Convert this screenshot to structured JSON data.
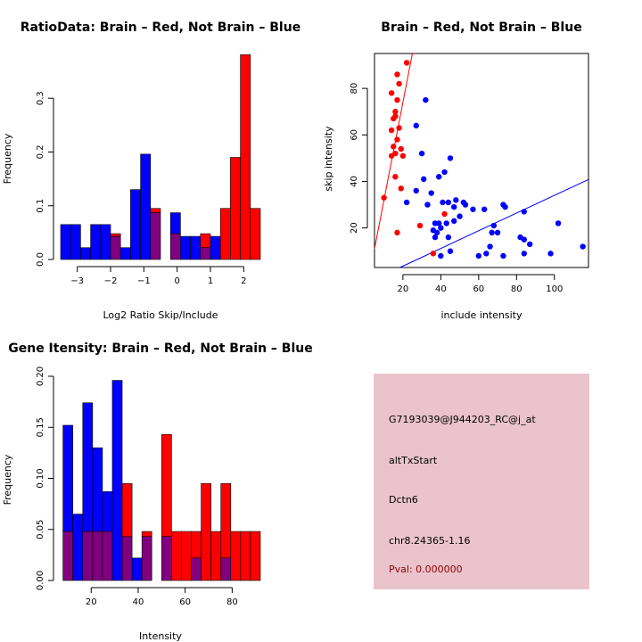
{
  "colors": {
    "brain": "#ff0000",
    "not_brain": "#0000ff",
    "overlap": "#800080",
    "info_bg": "#eac3cc",
    "pval": "#8b0000"
  },
  "chart_data": [
    {
      "id": "ratio",
      "type": "bar",
      "title": "RatioData: Brain – Red, Not Brain – Blue",
      "xlabel": "Log2 Ratio Skip/Include",
      "ylabel": "Frequency",
      "xlim": [
        -3.5,
        2.5
      ],
      "ylim": [
        0,
        0.38
      ],
      "xticks": [
        -3,
        -2,
        -1,
        0,
        1,
        2
      ],
      "xticklabels": [
        "−3",
        "−2",
        "−1",
        "0",
        "1",
        "2"
      ],
      "yticks": [
        0,
        0.1,
        0.2,
        0.3
      ],
      "yticklabels": [
        "0.0",
        "0.1",
        "0.2",
        "0.3"
      ],
      "bin_start": -3.5,
      "bin_width": 0.3,
      "series": [
        {
          "name": "Not Brain",
          "values": [
            0.065,
            0.065,
            0.022,
            0.065,
            0.065,
            0.043,
            0.022,
            0.13,
            0.196,
            0.087,
            0,
            0.087,
            0.043,
            0.043,
            0.022,
            0.043,
            0,
            0,
            0,
            0
          ]
        },
        {
          "name": "Brain",
          "values": [
            0,
            0,
            0,
            0,
            0,
            0.048,
            0,
            0,
            0,
            0.095,
            0,
            0.048,
            0,
            0,
            0.048,
            0,
            0.095,
            0.19,
            0.381,
            0.095
          ]
        }
      ]
    },
    {
      "id": "scatter",
      "type": "scatter",
      "title": "Brain – Red, Not Brain – Blue",
      "xlabel": "include intensity",
      "ylabel": "skip intensity",
      "xlim": [
        5,
        118
      ],
      "ylim": [
        3,
        95
      ],
      "xticks": [
        20,
        40,
        60,
        80,
        100
      ],
      "xticklabels": [
        "20",
        "40",
        "60",
        "80",
        "100"
      ],
      "yticks": [
        20,
        40,
        60,
        80
      ],
      "yticklabels": [
        "20",
        "40",
        "60",
        "80"
      ],
      "red_line": {
        "intercept": -10,
        "slope": 4.2
      },
      "blue_line": {
        "intercept": -4,
        "slope": 0.38
      },
      "series": [
        {
          "name": "Brain",
          "points": [
            [
              22,
              91
            ],
            [
              17,
              86
            ],
            [
              18,
              82
            ],
            [
              14,
              78
            ],
            [
              17,
              75
            ],
            [
              16,
              70
            ],
            [
              16,
              68
            ],
            [
              15,
              67
            ],
            [
              18,
              63
            ],
            [
              14,
              62
            ],
            [
              17,
              58
            ],
            [
              15,
              55
            ],
            [
              19,
              54
            ],
            [
              16,
              52
            ],
            [
              14,
              51
            ],
            [
              20,
              51
            ],
            [
              16,
              42
            ],
            [
              19,
              37
            ],
            [
              10,
              33
            ],
            [
              17,
              18
            ],
            [
              29,
              21
            ],
            [
              42,
              26
            ],
            [
              36,
              9
            ]
          ]
        },
        {
          "name": "Not Brain",
          "points": [
            [
              32,
              75
            ],
            [
              27,
              64
            ],
            [
              30,
              52
            ],
            [
              45,
              50
            ],
            [
              39,
              42
            ],
            [
              42,
              44
            ],
            [
              31,
              41
            ],
            [
              35,
              35
            ],
            [
              27,
              36
            ],
            [
              33,
              30
            ],
            [
              22,
              31
            ],
            [
              41,
              31
            ],
            [
              44,
              31
            ],
            [
              47,
              29
            ],
            [
              48,
              32
            ],
            [
              53,
              30
            ],
            [
              52,
              31
            ],
            [
              57,
              28
            ],
            [
              63,
              28
            ],
            [
              74,
              29
            ],
            [
              73,
              30
            ],
            [
              84,
              27
            ],
            [
              50,
              25
            ],
            [
              39,
              22
            ],
            [
              43,
              22
            ],
            [
              37,
              22
            ],
            [
              40,
              20
            ],
            [
              36,
              19
            ],
            [
              38,
              18
            ],
            [
              37,
              16
            ],
            [
              47,
              23
            ],
            [
              44,
              16
            ],
            [
              68,
              21
            ],
            [
              67,
              18
            ],
            [
              70,
              18
            ],
            [
              82,
              16
            ],
            [
              84,
              15
            ],
            [
              87,
              13
            ],
            [
              102,
              22
            ],
            [
              115,
              12
            ],
            [
              84,
              9
            ],
            [
              98,
              9
            ],
            [
              73,
              8
            ],
            [
              60,
              8
            ],
            [
              64,
              9
            ],
            [
              45,
              10
            ],
            [
              40,
              8
            ],
            [
              66,
              12
            ]
          ]
        }
      ]
    },
    {
      "id": "intensity",
      "type": "bar",
      "title": "Gene Itensity: Brain – Red, Not Brain – Blue",
      "xlabel": "Intensity",
      "ylabel": "Frequency",
      "xlim": [
        7,
        92
      ],
      "ylim": [
        0,
        0.2
      ],
      "xticks": [
        20,
        40,
        60,
        80
      ],
      "xticklabels": [
        "20",
        "40",
        "60",
        "80"
      ],
      "yticks": [
        0,
        0.05,
        0.1,
        0.15,
        0.2
      ],
      "yticklabels": [
        "0.00",
        "0.05",
        "0.10",
        "0.15",
        "0.20"
      ],
      "bin_start": 8,
      "bin_width": 4.2,
      "series": [
        {
          "name": "Not Brain",
          "values": [
            0.152,
            0.065,
            0.174,
            0.13,
            0.087,
            0.196,
            0.043,
            0.022,
            0.043,
            0,
            0.043,
            0,
            0,
            0.022,
            0,
            0,
            0.022,
            0,
            0,
            0
          ]
        },
        {
          "name": "Brain",
          "values": [
            0.048,
            0,
            0.048,
            0.048,
            0.048,
            0,
            0.095,
            0,
            0.048,
            0,
            0.143,
            0.048,
            0.048,
            0.048,
            0.095,
            0.048,
            0.095,
            0.048,
            0.048,
            0.048
          ]
        }
      ]
    }
  ],
  "info_panel": {
    "probe": "G7193039@J944203_RC@j_at",
    "event": "altTxStart",
    "gene": "Dctn6",
    "location": "chr8.24365-1.16",
    "pval": "Pval: 0.000000"
  }
}
